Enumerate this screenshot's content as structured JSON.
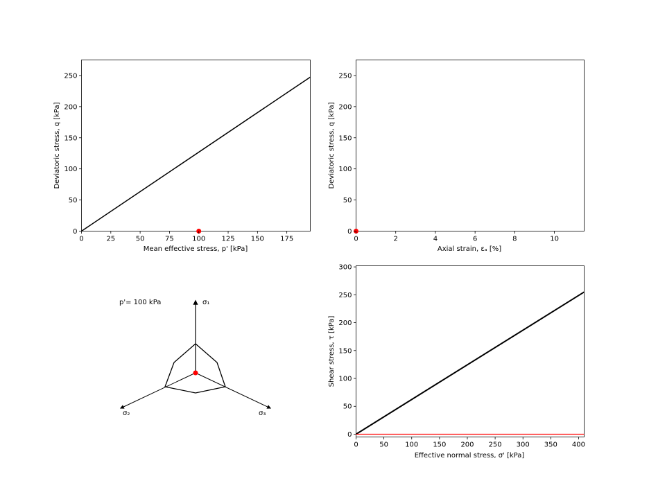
{
  "colors": {
    "line": "#000000",
    "point": "#ff0000",
    "background": "#ffffff"
  },
  "chart_data": [
    {
      "type": "line",
      "name": "p-q plot",
      "xlabel": "Mean effective stress, p' [kPa]",
      "ylabel": "Deviatoric stress, q [kPa]",
      "xlim": [
        0,
        195
      ],
      "ylim": [
        0,
        275
      ],
      "xticks": [
        0,
        25,
        50,
        75,
        100,
        125,
        150,
        175
      ],
      "yticks": [
        0,
        50,
        100,
        150,
        200,
        250
      ],
      "grid": false,
      "series": [
        {
          "kind": "line",
          "x": [
            0,
            195
          ],
          "y": [
            0,
            247.5
          ]
        },
        {
          "kind": "point",
          "x": [
            100
          ],
          "y": [
            0
          ]
        }
      ]
    },
    {
      "type": "line",
      "name": "strain-q plot",
      "xlabel": "Axial strain, εₐ [%]",
      "ylabel": "Deviatoric stress, q [kPa]",
      "xlim": [
        0,
        11.5
      ],
      "ylim": [
        0,
        275
      ],
      "xticks": [
        0,
        2,
        4,
        6,
        8,
        10
      ],
      "yticks": [
        0,
        50,
        100,
        150,
        200,
        250
      ],
      "grid": false,
      "series": [
        {
          "kind": "point",
          "x": [
            0
          ],
          "y": [
            0
          ]
        }
      ]
    },
    {
      "type": "diagram",
      "name": "deviatoric plane",
      "annotation": "p'= 100 kPa",
      "axis_labels": [
        "σ₁",
        "σ₂",
        "σ₃"
      ]
    },
    {
      "type": "line",
      "name": "mohr plot",
      "xlabel": "Effective normal stress, σ' [kPa]",
      "ylabel": "Shear stress,  τ [kPa]",
      "xlim": [
        0,
        410
      ],
      "ylim": [
        -5,
        302
      ],
      "xticks": [
        0,
        50,
        100,
        150,
        200,
        250,
        300,
        350,
        400
      ],
      "yticks": [
        0,
        50,
        100,
        150,
        200,
        250,
        300
      ],
      "grid": false,
      "series": [
        {
          "kind": "line",
          "x": [
            0,
            410
          ],
          "y": [
            0,
            255
          ]
        },
        {
          "kind": "redline",
          "x": [
            0,
            410
          ],
          "y": [
            0,
            0
          ]
        }
      ]
    }
  ]
}
